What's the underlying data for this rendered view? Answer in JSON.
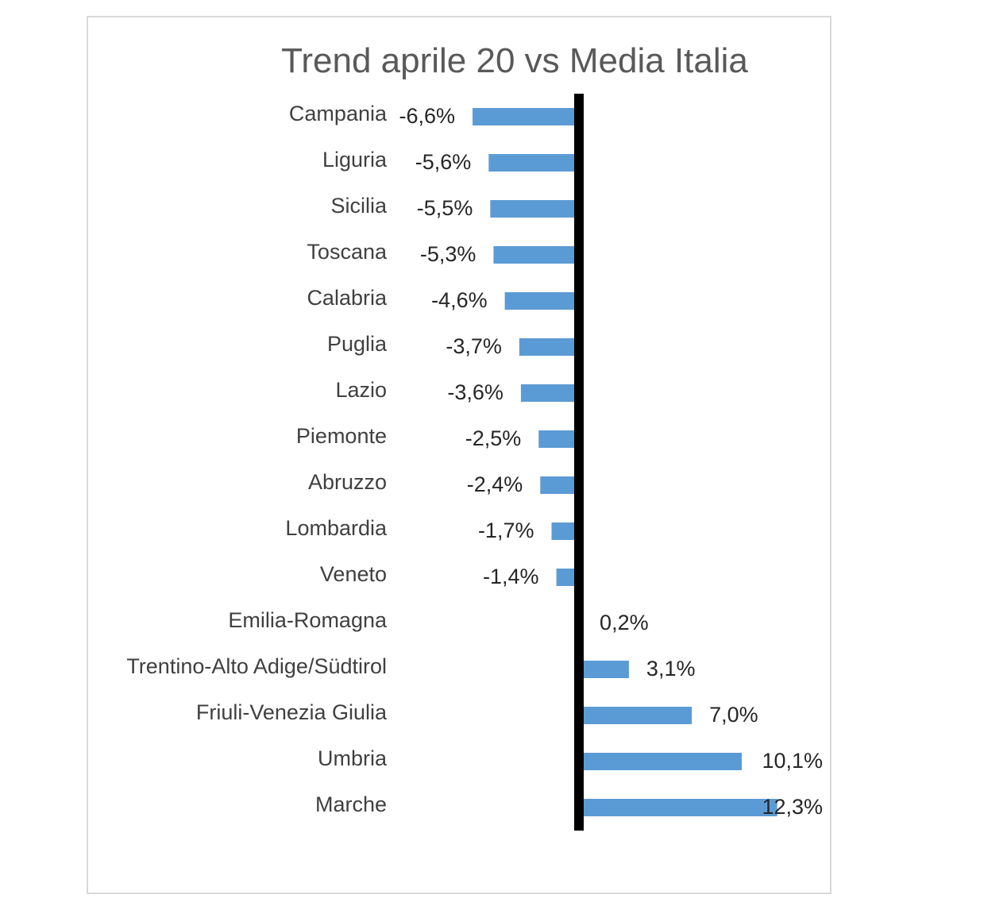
{
  "chart_data": {
    "type": "bar",
    "orientation": "horizontal",
    "title": "Trend aprile 20 vs Media Italia",
    "categories": [
      "Campania",
      "Liguria",
      "Sicilia",
      "Toscana",
      "Calabria",
      "Puglia",
      "Lazio",
      "Piemonte",
      "Abruzzo",
      "Lombardia",
      "Veneto",
      "Emilia-Romagna",
      "Trentino-Alto Adige/Südtirol",
      "Friuli-Venezia Giulia",
      "Umbria",
      "Marche"
    ],
    "values": [
      -6.6,
      -5.6,
      -5.5,
      -5.3,
      -4.6,
      -3.7,
      -3.6,
      -2.5,
      -2.4,
      -1.7,
      -1.4,
      0.2,
      3.1,
      7.0,
      10.1,
      12.3
    ],
    "value_labels": [
      "-6,6%",
      "-5,6%",
      "-5,5%",
      "-5,3%",
      "-4,6%",
      "-3,7%",
      "-3,6%",
      "-2,5%",
      "-2,4%",
      "-1,7%",
      "-1,4%",
      "0,2%",
      "3,1%",
      "7,0%",
      "10,1%",
      "12,3%"
    ],
    "bar_color": "#5b9bd5",
    "axis_color": "#000000",
    "grid": false,
    "legend": "none"
  }
}
